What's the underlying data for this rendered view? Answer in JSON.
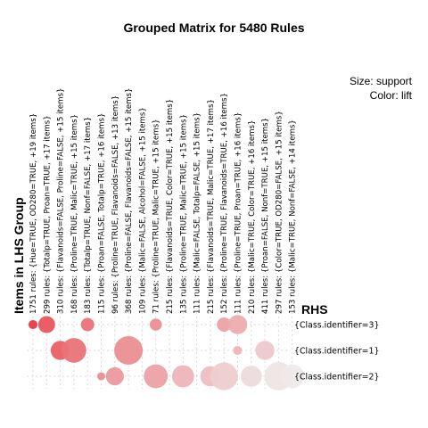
{
  "chart_data": {
    "type": "grouped-matrix-bubble",
    "title": "Grouped Matrix for 5480 Rules",
    "legend": {
      "size_label": "Size: support",
      "color_label": "Color: lift",
      "placement": "top-right"
    },
    "xlabel": "Items in LHS Group",
    "ylabel": "RHS",
    "lhs_groups": [
      "1751 rules: {Hue=TRUE, OD280=TRUE, +19 items}",
      "299 rules: {Totalp=TRUE, Proan=TRUE, +17 items}",
      "310 rules: {Flavanoids=FALSE, Proline=FALSE, +15 items}",
      "168 rules: {Proline=TRUE, Malic=TRUE, +15 items}",
      "183 rules: {Totalp=TRUE, Nonf=FALSE, +17 items}",
      "115 rules: {Proan=FALSE, Totalp=TRUE, +16 items}",
      "96 rules: {Proline=TRUE, Flavanoids=FALSE, +13 items}",
      "368 rules: {Proline=FALSE, Flavanoids=FALSE, +15 items}",
      "109 rules: {Malic=FALSE, Alcohol=FALSE, +15 items}",
      "71 rules: {Proline=TRUE, Malic=TRUE, +15 items}",
      "215 rules: {Flavanoids=TRUE, Color=TRUE, +15 items}",
      "135 rules: {Proline=TRUE, Malic=TRUE, +15 items}",
      "111 rules: {Malic=FALSE, Totalp=FALSE, +15 items}",
      "215 rules: {Flavanoids=TRUE, Malic=TRUE, +17 items}",
      "152 rules: {Proline=TRUE, Flavanoids=TRUE, +16 items}",
      "111 rules: {Proline=TRUE, Proan=TRUE, +16 items}",
      "210 rules: {Malic=TRUE, Color=TRUE, +16 items}",
      "411 rules: {Proan=FALSE, Nonf=TRUE, +15 items}",
      "297 rules: {Color=TRUE, OD280=FALSE, +15 items}",
      "153 rules: {Malic=TRUE, Nonf=FALSE, +14 items}"
    ],
    "rhs_items": [
      "{Class.identifier=3}",
      "{Class.identifier=1}",
      "{Class.identifier=2}"
    ],
    "bubbles": [
      {
        "g": 0,
        "r": 0,
        "support": 0.1,
        "lift": 2.9
      },
      {
        "g": 1,
        "r": 0,
        "support": 0.35,
        "lift": 2.6
      },
      {
        "g": 4,
        "r": 0,
        "support": 0.22,
        "lift": 2.3
      },
      {
        "g": 9,
        "r": 0,
        "support": 0.18,
        "lift": 2.0
      },
      {
        "g": 14,
        "r": 0,
        "support": 0.25,
        "lift": 1.8
      },
      {
        "g": 15,
        "r": 0,
        "support": 0.45,
        "lift": 1.7
      },
      {
        "g": 2,
        "r": 1,
        "support": 0.45,
        "lift": 2.5
      },
      {
        "g": 3,
        "r": 1,
        "support": 0.75,
        "lift": 2.3
      },
      {
        "g": 7,
        "r": 1,
        "support": 1.0,
        "lift": 2.0
      },
      {
        "g": 15,
        "r": 1,
        "support": 0.1,
        "lift": 1.6
      },
      {
        "g": 17,
        "r": 1,
        "support": 0.45,
        "lift": 1.4
      },
      {
        "g": 5,
        "r": 2,
        "support": 0.08,
        "lift": 2.0
      },
      {
        "g": 6,
        "r": 2,
        "support": 0.4,
        "lift": 1.9
      },
      {
        "g": 9,
        "r": 2,
        "support": 0.7,
        "lift": 1.8
      },
      {
        "g": 11,
        "r": 2,
        "support": 0.6,
        "lift": 1.6
      },
      {
        "g": 13,
        "r": 2,
        "support": 0.5,
        "lift": 1.5
      },
      {
        "g": 14,
        "r": 2,
        "support": 0.95,
        "lift": 1.35
      },
      {
        "g": 16,
        "r": 2,
        "support": 0.55,
        "lift": 1.2
      },
      {
        "g": 18,
        "r": 2,
        "support": 1.0,
        "lift": 1.1
      },
      {
        "g": 19,
        "r": 2,
        "support": 0.7,
        "lift": 1.05
      }
    ],
    "lift_range": [
      1.0,
      3.0
    ],
    "colors": {
      "high_lift": "#e8303a",
      "low_lift": "#eeeeee",
      "grid": "#d9d9d9"
    },
    "grid": true
  }
}
